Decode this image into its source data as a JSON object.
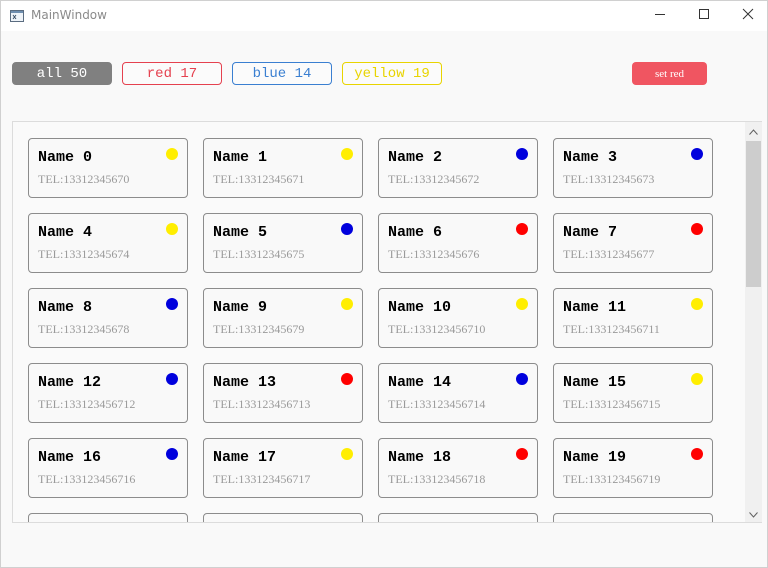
{
  "window": {
    "title": "MainWindow"
  },
  "filters": {
    "all_label": "all 50",
    "red_label": "red 17",
    "blue_label": "blue 14",
    "yellow_label": "yellow 19",
    "set_red_label": "set red"
  },
  "colors": {
    "red": "#ff0000",
    "blue": "#0000dd",
    "yellow": "#ffee00"
  },
  "cards": [
    {
      "name": "Name 0",
      "tel": "TEL:13312345670",
      "color": "yellow"
    },
    {
      "name": "Name 1",
      "tel": "TEL:13312345671",
      "color": "yellow"
    },
    {
      "name": "Name 2",
      "tel": "TEL:13312345672",
      "color": "blue"
    },
    {
      "name": "Name 3",
      "tel": "TEL:13312345673",
      "color": "blue"
    },
    {
      "name": "Name 4",
      "tel": "TEL:13312345674",
      "color": "yellow"
    },
    {
      "name": "Name 5",
      "tel": "TEL:13312345675",
      "color": "blue"
    },
    {
      "name": "Name 6",
      "tel": "TEL:13312345676",
      "color": "red"
    },
    {
      "name": "Name 7",
      "tel": "TEL:13312345677",
      "color": "red"
    },
    {
      "name": "Name 8",
      "tel": "TEL:13312345678",
      "color": "blue"
    },
    {
      "name": "Name 9",
      "tel": "TEL:13312345679",
      "color": "yellow"
    },
    {
      "name": "Name 10",
      "tel": "TEL:133123456710",
      "color": "yellow"
    },
    {
      "name": "Name 11",
      "tel": "TEL:133123456711",
      "color": "yellow"
    },
    {
      "name": "Name 12",
      "tel": "TEL:133123456712",
      "color": "blue"
    },
    {
      "name": "Name 13",
      "tel": "TEL:133123456713",
      "color": "red"
    },
    {
      "name": "Name 14",
      "tel": "TEL:133123456714",
      "color": "blue"
    },
    {
      "name": "Name 15",
      "tel": "TEL:133123456715",
      "color": "yellow"
    },
    {
      "name": "Name 16",
      "tel": "TEL:133123456716",
      "color": "blue"
    },
    {
      "name": "Name 17",
      "tel": "TEL:133123456717",
      "color": "yellow"
    },
    {
      "name": "Name 18",
      "tel": "TEL:133123456718",
      "color": "red"
    },
    {
      "name": "Name 19",
      "tel": "TEL:133123456719",
      "color": "red"
    },
    {
      "name": "",
      "tel": "",
      "color": ""
    },
    {
      "name": "",
      "tel": "",
      "color": ""
    },
    {
      "name": "",
      "tel": "",
      "color": ""
    },
    {
      "name": "",
      "tel": "",
      "color": ""
    }
  ]
}
